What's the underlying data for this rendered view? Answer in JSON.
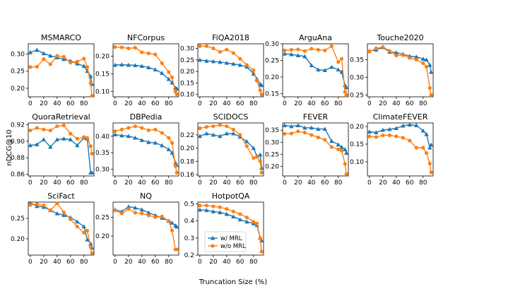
{
  "chart_data": {
    "type": "line",
    "xlabel": "Truncation Size (%)",
    "ylabel": "nDCG@10",
    "x": [
      0,
      10,
      20,
      30,
      40,
      50,
      60,
      70,
      80,
      85,
      90,
      92
    ],
    "xticks": [
      0,
      20,
      40,
      60,
      80
    ],
    "legend": {
      "placement": "inside HotpotQA panel, lower-left",
      "entries": [
        {
          "name": "w/ MRL",
          "color": "#1f77b4",
          "marker": "triangle"
        },
        {
          "name": "w/o MRL",
          "color": "#ff7f0e",
          "marker": "circle"
        }
      ]
    },
    "grid": false,
    "panels": [
      {
        "title": "MSMARCO",
        "ylim": [
          0.175,
          0.33
        ],
        "yticks": [
          "0.20",
          "0.25",
          "0.30"
        ],
        "series": [
          {
            "name": "w/ MRL",
            "values": [
              0.305,
              0.312,
              0.302,
              0.295,
              0.29,
              0.285,
              0.28,
              0.272,
              0.265,
              0.25,
              0.235,
              0.212
            ]
          },
          {
            "name": "w/o MRL",
            "values": [
              0.262,
              0.263,
              0.285,
              0.27,
              0.295,
              0.292,
              0.275,
              0.278,
              0.287,
              0.262,
              0.215,
              0.178
            ]
          }
        ]
      },
      {
        "title": "NFCorpus",
        "ylim": [
          0.085,
          0.235
        ],
        "yticks": [
          "0.10",
          "0.15",
          "0.20"
        ],
        "series": [
          {
            "name": "w/ MRL",
            "values": [
              0.175,
              0.176,
              0.175,
              0.174,
              0.172,
              0.168,
              0.162,
              0.152,
              0.135,
              0.125,
              0.11,
              0.108
            ]
          },
          {
            "name": "w/o MRL",
            "values": [
              0.226,
              0.225,
              0.222,
              0.224,
              0.211,
              0.208,
              0.205,
              0.18,
              0.155,
              0.14,
              0.1,
              0.092
            ]
          }
        ]
      },
      {
        "title": "FiQA2018",
        "ylim": [
          0.09,
          0.32
        ],
        "yticks": [
          "0.10",
          "0.15",
          "0.20",
          "0.25",
          "0.30"
        ],
        "series": [
          {
            "name": "w/ MRL",
            "values": [
              0.25,
              0.246,
              0.244,
              0.241,
              0.237,
              0.233,
              0.228,
              0.22,
              0.19,
              0.168,
              0.145,
              0.14
            ]
          },
          {
            "name": "w/o MRL",
            "values": [
              0.31,
              0.31,
              0.3,
              0.285,
              0.295,
              0.28,
              0.255,
              0.228,
              0.205,
              0.16,
              0.118,
              0.1
            ]
          }
        ]
      },
      {
        "title": "ArguAna",
        "ylim": [
          0.14,
          0.3
        ],
        "yticks": [
          "0.15",
          "0.20",
          "0.25",
          "0.30"
        ],
        "series": [
          {
            "name": "w/ MRL",
            "values": [
              0.27,
              0.268,
              0.265,
              0.262,
              0.235,
              0.222,
              0.22,
              0.23,
              0.222,
              0.215,
              0.175,
              0.168
            ]
          },
          {
            "name": "w/o MRL",
            "values": [
              0.28,
              0.282,
              0.283,
              0.278,
              0.285,
              0.282,
              0.28,
              0.293,
              0.245,
              0.255,
              0.155,
              0.145
            ]
          }
        ]
      },
      {
        "title": "Touche2020",
        "ylim": [
          0.245,
          0.395
        ],
        "yticks": [
          "0.25",
          "0.30",
          "0.35"
        ],
        "series": [
          {
            "name": "w/ MRL",
            "values": [
              0.375,
              0.378,
              0.385,
              0.372,
              0.37,
              0.366,
              0.36,
              0.358,
              0.352,
              0.35,
              0.335,
              0.315
            ]
          },
          {
            "name": "w/o MRL",
            "values": [
              0.373,
              0.382,
              0.386,
              0.375,
              0.362,
              0.363,
              0.355,
              0.35,
              0.34,
              0.33,
              0.27,
              0.25
            ]
          }
        ]
      },
      {
        "title": "QuoraRetrieval",
        "ylim": [
          0.858,
          0.922
        ],
        "yticks": [
          "0.86",
          "0.88",
          "0.90",
          "0.92"
        ],
        "series": [
          {
            "name": "w/ MRL",
            "values": [
              0.895,
              0.896,
              0.902,
              0.893,
              0.902,
              0.903,
              0.902,
              0.895,
              0.904,
              0.903,
              0.862,
              0.862
            ]
          },
          {
            "name": "w/o MRL",
            "values": [
              0.913,
              0.916,
              0.914,
              0.913,
              0.918,
              0.919,
              0.909,
              0.903,
              0.905,
              0.904,
              0.894,
              0.885
            ]
          }
        ]
      },
      {
        "title": "DBPedia",
        "ylim": [
          0.28,
          0.44
        ],
        "yticks": [
          "0.30",
          "0.35",
          "0.40"
        ],
        "series": [
          {
            "name": "w/ MRL",
            "values": [
              0.405,
              0.402,
              0.4,
              0.395,
              0.388,
              0.382,
              0.38,
              0.372,
              0.36,
              0.35,
              0.32,
              0.312
            ]
          },
          {
            "name": "w/o MRL",
            "values": [
              0.415,
              0.42,
              0.425,
              0.43,
              0.425,
              0.418,
              0.42,
              0.41,
              0.395,
              0.38,
              0.31,
              0.29
            ]
          }
        ]
      },
      {
        "title": "SCIDOCS",
        "ylim": [
          0.158,
          0.238
        ],
        "yticks": [
          "0.16",
          "0.18",
          "0.20",
          "0.22"
        ],
        "series": [
          {
            "name": "w/ MRL",
            "values": [
              0.218,
              0.222,
              0.22,
              0.218,
              0.222,
              0.222,
              0.217,
              0.21,
              0.2,
              0.188,
              0.19,
              0.17
            ]
          },
          {
            "name": "w/o MRL",
            "values": [
              0.23,
              0.232,
              0.233,
              0.235,
              0.233,
              0.228,
              0.22,
              0.203,
              0.185,
              0.187,
              0.18,
              0.163
            ]
          }
        ]
      },
      {
        "title": "FEVER",
        "ylim": [
          0.16,
          0.38
        ],
        "yticks": [
          "0.20",
          "0.25",
          "0.30",
          "0.35"
        ],
        "series": [
          {
            "name": "w/ MRL",
            "values": [
              0.37,
              0.366,
              0.37,
              0.36,
              0.36,
              0.355,
              0.355,
              0.305,
              0.29,
              0.28,
              0.27,
              0.255
            ]
          },
          {
            "name": "w/o MRL",
            "values": [
              0.335,
              0.336,
              0.345,
              0.34,
              0.33,
              0.32,
              0.31,
              0.28,
              0.27,
              0.265,
              0.21,
              0.168
            ]
          }
        ]
      },
      {
        "title": "ClimateFEVER",
        "ylim": [
          0.06,
          0.21
        ],
        "yticks": [
          "0.10",
          "0.15",
          "0.20"
        ],
        "series": [
          {
            "name": "w/ MRL",
            "values": [
              0.185,
              0.183,
              0.19,
              0.192,
              0.195,
              0.202,
              0.205,
              0.203,
              0.188,
              0.178,
              0.14,
              0.148
            ]
          },
          {
            "name": "w/o MRL",
            "values": [
              0.172,
              0.17,
              0.175,
              0.175,
              0.172,
              0.168,
              0.16,
              0.14,
              0.14,
              0.125,
              0.095,
              0.07
            ]
          }
        ]
      },
      {
        "title": "SciFact",
        "ylim": [
          0.16,
          0.29
        ],
        "yticks": [
          "0.20",
          "0.25"
        ],
        "series": [
          {
            "name": "w/ MRL",
            "values": [
              0.288,
              0.28,
              0.278,
              0.27,
              0.262,
              0.258,
              0.252,
              0.242,
              0.23,
              0.198,
              0.188,
              0.178
            ]
          },
          {
            "name": "w/o MRL",
            "values": [
              0.283,
              0.285,
              0.282,
              0.27,
              0.287,
              0.265,
              0.248,
              0.23,
              0.215,
              0.22,
              0.18,
              0.165
            ]
          }
        ]
      },
      {
        "title": "NQ",
        "ylim": [
          0.15,
          0.29
        ],
        "yticks": [
          "0.20",
          "0.25"
        ],
        "series": [
          {
            "name": "w/ MRL",
            "values": [
              0.27,
              0.265,
              0.278,
              0.275,
              0.27,
              0.262,
              0.255,
              0.248,
              0.24,
              0.235,
              0.228,
              0.225
            ]
          },
          {
            "name": "w/o MRL",
            "values": [
              0.268,
              0.26,
              0.272,
              0.262,
              0.26,
              0.255,
              0.25,
              0.252,
              0.24,
              0.215,
              0.165,
              0.165
            ]
          }
        ]
      },
      {
        "title": "HotpotQA",
        "ylim": [
          0.2,
          0.51
        ],
        "yticks": [
          "0.2",
          "0.3",
          "0.4",
          "0.5"
        ],
        "series": [
          {
            "name": "w/ MRL",
            "values": [
              0.465,
              0.462,
              0.455,
              0.45,
              0.44,
              0.425,
              0.408,
              0.395,
              0.385,
              0.375,
              0.3,
              0.285
            ]
          },
          {
            "name": "w/o MRL",
            "values": [
              0.49,
              0.49,
              0.485,
              0.48,
              0.47,
              0.455,
              0.44,
              0.42,
              0.395,
              0.385,
              0.3,
              0.22
            ]
          }
        ]
      }
    ]
  }
}
